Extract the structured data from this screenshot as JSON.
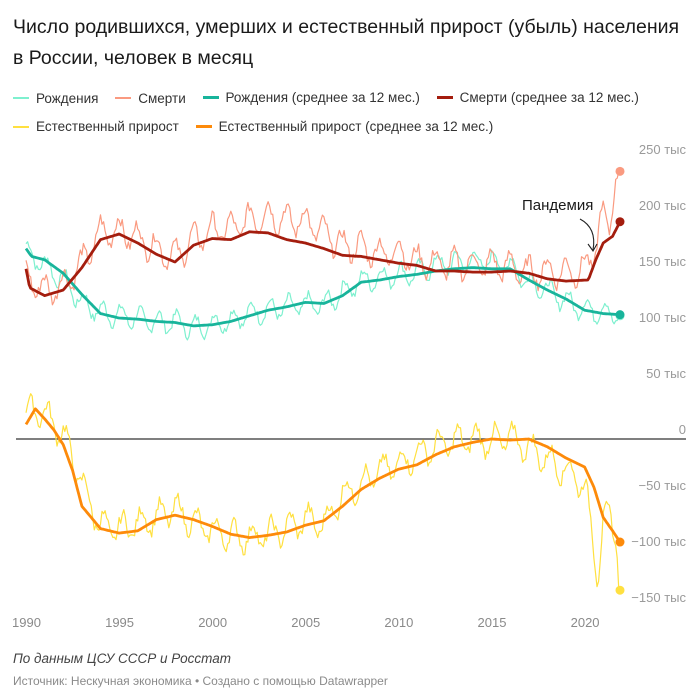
{
  "chart_data": {
    "type": "line",
    "title": "Число родившихся, умерших и естественный прирост (убыль) населения в России, человек в месяц",
    "xlabel": "",
    "ylabel": "",
    "units": "thousand people per month",
    "xlim": [
      1990,
      2022
    ],
    "ylim": [
      -150,
      250
    ],
    "grid": false,
    "legend_position": "top",
    "x_ticks": [
      {
        "value": 1990,
        "label": "1990"
      },
      {
        "value": 1995,
        "label": "1995"
      },
      {
        "value": 2000,
        "label": "2000"
      },
      {
        "value": 2005,
        "label": "2005"
      },
      {
        "value": 2010,
        "label": "2010"
      },
      {
        "value": 2015,
        "label": "2015"
      },
      {
        "value": 2020,
        "label": "2020"
      }
    ],
    "y_ticks": [
      {
        "value": 250,
        "label": "250 тыс"
      },
      {
        "value": 200,
        "label": "200 тыс"
      },
      {
        "value": 150,
        "label": "150 тыс"
      },
      {
        "value": 100,
        "label": "100 тыс"
      },
      {
        "value": 50,
        "label": "50 тыс"
      },
      {
        "value": 0,
        "label": "0"
      },
      {
        "value": -50,
        "label": "−50 тыс"
      },
      {
        "value": -100,
        "label": "−100 тыс"
      },
      {
        "value": -150,
        "label": "−150 тыс"
      }
    ],
    "annotations": [
      {
        "text": "Пандемия",
        "x": 2020.2,
        "y": 200
      }
    ],
    "series": [
      {
        "key": "births_raw",
        "name": "Рождения",
        "color": "#7ef0cf",
        "style": "thin",
        "x": [
          1990,
          1991,
          1992,
          1993,
          1994,
          1995,
          1996,
          1997,
          1998,
          1999,
          2000,
          2001,
          2002,
          2003,
          2004,
          2005,
          2006,
          2007,
          2008,
          2009,
          2010,
          2011,
          2012,
          2013,
          2014,
          2015,
          2016,
          2017,
          2018,
          2019,
          2020,
          2021,
          2021.9
        ],
        "y": [
          168,
          155,
          142,
          122,
          113,
          110,
          108,
          104,
          105,
          99,
          103,
          106,
          112,
          115,
          118,
          120,
          120,
          131,
          141,
          144,
          147,
          148,
          156,
          157,
          159,
          159,
          155,
          140,
          133,
          123,
          116,
          114,
          110
        ],
        "seasonal_amplitude": 9
      },
      {
        "key": "deaths_raw",
        "name": "Смерти",
        "color": "#fa9a80",
        "style": "thin",
        "x": [
          1990,
          1991,
          1992,
          1993,
          1994,
          1995,
          1996,
          1997,
          1998,
          1999,
          2000,
          2001,
          2002,
          2003,
          2004,
          2005,
          2006,
          2007,
          2008,
          2009,
          2010,
          2011,
          2012,
          2013,
          2014,
          2015,
          2016,
          2017,
          2018,
          2019,
          2020,
          2020.5,
          2020.9,
          2021.3,
          2021.6,
          2021.9
        ],
        "y": [
          145,
          133,
          137,
          157,
          185,
          186,
          180,
          170,
          163,
          178,
          187,
          188,
          196,
          200,
          196,
          195,
          184,
          173,
          171,
          166,
          168,
          159,
          157,
          156,
          156,
          156,
          154,
          149,
          150,
          149,
          152,
          165,
          200,
          185,
          232,
          239
        ],
        "seasonal_amplitude": 12
      },
      {
        "key": "births_avg",
        "name": "Рождения (среднее за 12 мес.)",
        "color": "#18b49b",
        "style": "thick",
        "x": [
          1990,
          1990.3,
          1991,
          1992,
          1993,
          1994,
          1995,
          1996,
          1997,
          1998,
          1999,
          2000,
          2001,
          2002,
          2003,
          2004,
          2005,
          2006,
          2007,
          2008,
          2009,
          2010,
          2011,
          2012,
          2013,
          2014,
          2015,
          2016,
          2017,
          2018,
          2019,
          2020,
          2021,
          2021.9
        ],
        "y": [
          170,
          163,
          160,
          148,
          129,
          112,
          108,
          107,
          105,
          104,
          101,
          102,
          105,
          110,
          115,
          118,
          122,
          121,
          128,
          140,
          142,
          145,
          147,
          150,
          152,
          153,
          152,
          152,
          142,
          133,
          125,
          115,
          112,
          111
        ]
      },
      {
        "key": "deaths_avg",
        "name": "Смерти (среднее за 12 мес.)",
        "color": "#a41d0e",
        "style": "thick",
        "x": [
          1990,
          1990.2,
          1991,
          1992,
          1993,
          1994,
          1995,
          1996,
          1997,
          1998,
          1999,
          2000,
          2001,
          2002,
          2003,
          2004,
          2005,
          2006,
          2007,
          2008,
          2009,
          2010,
          2011,
          2012,
          2013,
          2014,
          2015,
          2016,
          2017,
          2018,
          2019,
          2020.2,
          2020.6,
          2021,
          2021.5,
          2021.9
        ],
        "y": [
          152,
          135,
          128,
          133,
          153,
          178,
          183,
          175,
          165,
          158,
          173,
          179,
          178,
          185,
          184,
          178,
          175,
          170,
          164,
          163,
          160,
          157,
          155,
          150,
          150,
          149,
          149,
          150,
          148,
          143,
          141,
          142,
          160,
          175,
          181,
          194
        ]
      },
      {
        "key": "natural_raw",
        "name": "Естественный прирост",
        "color": "#ffe040",
        "style": "thin",
        "x": [
          1990,
          1990.5,
          1991,
          1992,
          1993,
          1994,
          1995,
          1996,
          1997,
          1998,
          1999,
          2000,
          2001,
          2002,
          2003,
          2004,
          2005,
          2006,
          2007,
          2008,
          2009,
          2010,
          2011,
          2012,
          2013,
          2014,
          2015,
          2016,
          2017,
          2018,
          2019,
          2020,
          2020.7,
          2021,
          2021.4,
          2021.8,
          2021.9
        ],
        "y": [
          22,
          28,
          22,
          5,
          -40,
          -78,
          -80,
          -75,
          -70,
          -62,
          -75,
          -82,
          -86,
          -88,
          -85,
          -80,
          -72,
          -76,
          -50,
          -40,
          -28,
          -22,
          -14,
          -6,
          -2,
          0,
          -2,
          2,
          -8,
          -18,
          -28,
          -40,
          -120,
          -75,
          -70,
          -95,
          -135
        ],
        "seasonal_amplitude": 12
      },
      {
        "key": "natural_avg",
        "name": "Естественный прирост (среднее за 12 мес.)",
        "color": "#fd8a0a",
        "style": "thick",
        "x": [
          1990,
          1990.5,
          1991,
          1991.5,
          1992,
          1992.5,
          1993,
          1994,
          1995,
          1996,
          1997,
          1998,
          1999,
          2000,
          2001,
          2002,
          2003,
          2004,
          2005,
          2006,
          2007,
          2008,
          2009,
          2010,
          2011,
          2012,
          2013,
          2014,
          2015,
          2016,
          2017,
          2018,
          2019,
          2020,
          2020.5,
          2021,
          2021.5,
          2021.9
        ],
        "y": [
          13,
          27,
          18,
          8,
          -5,
          -28,
          -60,
          -80,
          -84,
          -82,
          -72,
          -68,
          -72,
          -78,
          -85,
          -88,
          -86,
          -83,
          -77,
          -73,
          -60,
          -45,
          -35,
          -27,
          -23,
          -14,
          -7,
          -3,
          0,
          -1,
          0,
          -7,
          -17,
          -25,
          -43,
          -70,
          -82,
          -92
        ]
      }
    ]
  },
  "title": "Число родившихся, умерших и естественный прирост (убыль) населения в России, человек в месяц",
  "legend": [
    {
      "label": "Рождения",
      "color": "#7ef0cf",
      "thick": false
    },
    {
      "label": "Смерти",
      "color": "#fa9a80",
      "thick": false
    },
    {
      "label": "Рождения (среднее за 12 мес.)",
      "color": "#18b49b",
      "thick": true
    },
    {
      "label": "Смерти (среднее за 12 мес.)",
      "color": "#a41d0e",
      "thick": true
    },
    {
      "label": "Естественный прирост",
      "color": "#ffe040",
      "thick": false
    },
    {
      "label": "Естественный прирост (среднее за 12 мес.)",
      "color": "#fd8a0a",
      "thick": true
    }
  ],
  "notes": "По данным ЦСУ СССР и Росстат",
  "footer": "Источник: Нескучная экономика • Создано с помощью Datawrapper"
}
